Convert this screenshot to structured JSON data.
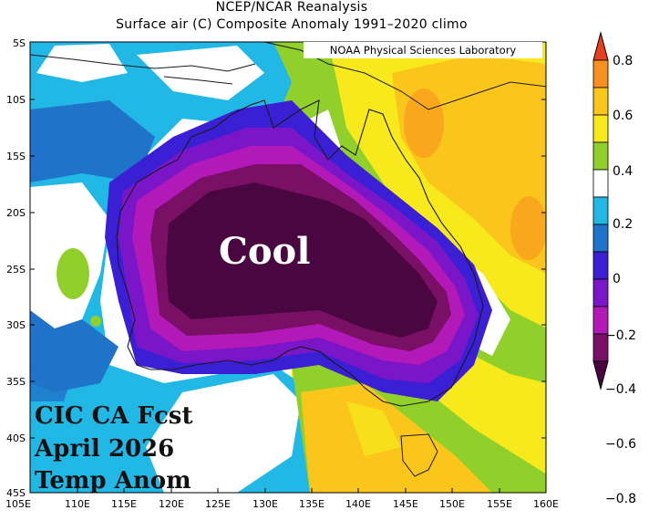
{
  "title": "NCEP/NCAR Reanalysis",
  "subtitle": "Surface air (C) Composite Anomaly 1991–2020 climo",
  "credit": "NOAA Physical Sciences Laboratory",
  "main_label": "Cool",
  "overlay": [
    "CIC CA Fcst",
    "April 2026",
    "Temp Anom"
  ],
  "lat_labels": [
    "5S",
    "10S",
    "15S",
    "20S",
    "25S",
    "30S",
    "35S",
    "40S",
    "45S"
  ],
  "lon_labels": [
    "105E",
    "110E",
    "115E",
    "120E",
    "125E",
    "130E",
    "135E",
    "140E",
    "145E",
    "150E",
    "155E",
    "160E"
  ],
  "colorbar": {
    "labels": [
      "0.8",
      "0.6",
      "0.4",
      "0.2",
      "0",
      "−0.2",
      "−0.4",
      "−0.6",
      "−0.8"
    ],
    "colors": [
      "#e8401c",
      "#f7901f",
      "#fbc61b",
      "#f7e91b",
      "#91d02a",
      "#ffffff",
      "#22b8e6",
      "#1f73c8",
      "#3b1fd4",
      "#7a16c8",
      "#b318b8",
      "#7a0f66",
      "#4a0640"
    ]
  }
}
